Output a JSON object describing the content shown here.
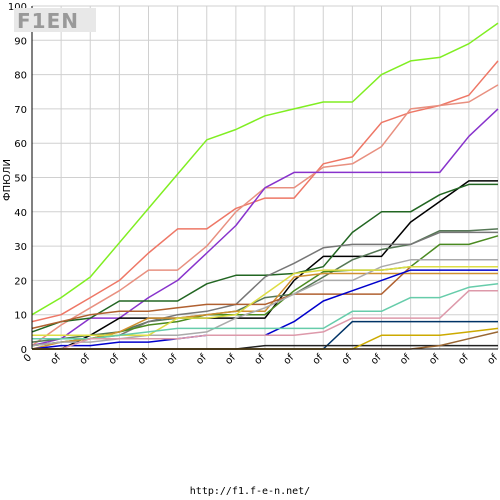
{
  "logo": {
    "text": "F1EN"
  },
  "footer": {
    "url": "http://f1.f-e-n.net/"
  },
  "chart_data": {
    "type": "line",
    "title": "",
    "xlabel": "",
    "ylabel": "ФПЮЛИ",
    "ylim": [
      0,
      100
    ],
    "y_ticks": [
      0,
      10,
      20,
      30,
      40,
      50,
      60,
      70,
      80,
      90,
      100
    ],
    "categories": [
      "0",
      "of",
      "of",
      "of",
      "of",
      "of",
      "of",
      "of",
      "of",
      "of",
      "of",
      "of",
      "of",
      "of",
      "of",
      "of",
      "of"
    ],
    "grid": true,
    "series": [
      {
        "color": "#80ee22",
        "values": [
          10,
          15,
          21,
          31,
          41,
          51,
          61,
          64,
          68,
          70,
          72,
          72,
          80,
          84,
          85,
          89,
          95
        ]
      },
      {
        "color": "#ee7766",
        "values": [
          8,
          10,
          15,
          20,
          28,
          35,
          35,
          41,
          44,
          44,
          54,
          56,
          66,
          69,
          71,
          74,
          84
        ]
      },
      {
        "color": "#e89080",
        "values": [
          1,
          7,
          12,
          17,
          23,
          23,
          30,
          40,
          47,
          47,
          53,
          54,
          59,
          70,
          71,
          72,
          77
        ]
      },
      {
        "color": "#8833cc",
        "values": [
          1,
          3,
          9,
          9,
          15,
          20,
          28,
          36,
          47,
          51.5,
          51.5,
          51.5,
          51.5,
          51.5,
          51.5,
          62,
          70
        ]
      },
      {
        "color": "#000000",
        "values": [
          0,
          0,
          4,
          9,
          9,
          9,
          9,
          9,
          9,
          20,
          27,
          27,
          27,
          37,
          43,
          49,
          49
        ]
      },
      {
        "color": "#226622",
        "values": [
          5,
          8,
          9,
          14,
          14,
          14,
          19,
          21.5,
          21.5,
          22,
          24,
          34,
          40,
          40,
          45,
          48,
          48
        ]
      },
      {
        "color": "#557755",
        "values": [
          2,
          3,
          4,
          5,
          8,
          9,
          10,
          11,
          15,
          16,
          21,
          26,
          29,
          30.5,
          34.5,
          34.5,
          35
        ]
      },
      {
        "color": "#777777",
        "values": [
          1,
          2,
          3,
          4,
          8,
          10,
          11,
          13,
          21,
          25,
          29.5,
          30.5,
          30.5,
          30.5,
          34,
          34,
          34
        ]
      },
      {
        "color": "#4a8a20",
        "values": [
          1,
          2,
          3,
          5,
          7,
          8,
          10,
          10,
          10,
          17,
          22.5,
          23,
          23,
          24,
          30.5,
          30.5,
          33
        ]
      },
      {
        "color": "#d09030",
        "values": [
          0,
          2,
          3,
          5,
          9,
          9,
          10,
          11,
          11,
          21,
          22,
          22,
          22,
          22,
          22,
          22,
          22
        ]
      },
      {
        "color": "#b06030",
        "values": [
          6,
          8,
          10,
          11,
          11,
          12,
          13,
          13,
          13,
          16,
          16,
          16,
          16,
          24,
          24,
          24,
          24
        ]
      },
      {
        "color": "#aaaaaa",
        "values": [
          1,
          2,
          2,
          3,
          4,
          4,
          5,
          9,
          12,
          16,
          20,
          20,
          24,
          26,
          26,
          26,
          26
        ]
      },
      {
        "color": "#dddd44",
        "values": [
          4,
          4,
          4,
          4,
          4,
          9,
          9,
          10,
          16,
          22,
          23,
          23,
          23,
          24,
          24,
          24,
          24
        ]
      },
      {
        "color": "#0000cc",
        "values": [
          0,
          1,
          1,
          2,
          2,
          3,
          4,
          4,
          4,
          8,
          14,
          17,
          20,
          23,
          23,
          23,
          23
        ]
      },
      {
        "color": "#66ccaa",
        "values": [
          3,
          3,
          3,
          4,
          5,
          6,
          6,
          6,
          6,
          6,
          6,
          11,
          11,
          15,
          15,
          18,
          19
        ]
      },
      {
        "color": "#dd99aa",
        "values": [
          0,
          0,
          3,
          3,
          3,
          3,
          4,
          4,
          4,
          4,
          5,
          9,
          9,
          9,
          9,
          17,
          17
        ]
      },
      {
        "color": "#003366",
        "values": [
          0,
          0,
          0,
          0,
          0,
          0,
          0,
          0,
          0,
          0,
          0,
          8,
          8,
          8,
          8,
          8,
          8
        ]
      },
      {
        "color": "#222222",
        "values": [
          0,
          0,
          0,
          0,
          0,
          0,
          0,
          0,
          1,
          1,
          1,
          1,
          1,
          1,
          1,
          1,
          1
        ]
      },
      {
        "color": "#ccaa00",
        "values": [
          0,
          0,
          0,
          0,
          0,
          0,
          0,
          0,
          0,
          0,
          0,
          0,
          4,
          4,
          4,
          5,
          6
        ]
      },
      {
        "color": "#996633",
        "values": [
          0,
          0,
          0,
          0,
          0,
          0,
          0,
          0,
          0,
          0,
          0,
          0,
          0,
          0,
          1,
          3,
          5
        ]
      }
    ]
  }
}
